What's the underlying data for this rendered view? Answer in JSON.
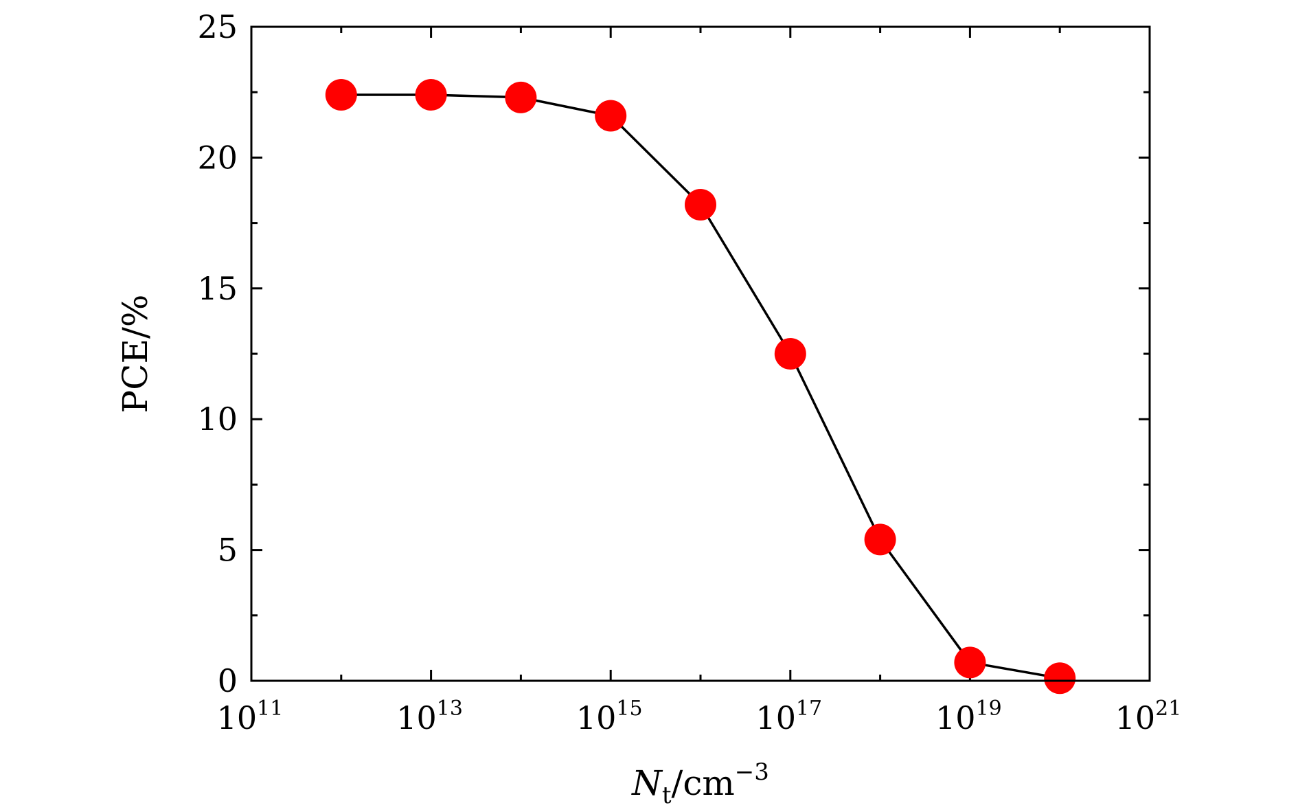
{
  "chart_data": {
    "type": "line",
    "x_scale": "log",
    "x": [
      "1e12",
      "1e13",
      "1e14",
      "1e15",
      "1e16",
      "1e17",
      "1e18",
      "1e19",
      "1e20"
    ],
    "series": [
      {
        "values": [
          22.4,
          22.4,
          22.3,
          21.6,
          18.2,
          12.5,
          5.4,
          0.7,
          0.1
        ],
        "line_color": "#000000",
        "marker_color": "#ff0000",
        "marker": "circle"
      }
    ],
    "xlim": [
      "1e11",
      "1e21"
    ],
    "ylim": [
      0,
      25
    ],
    "x_ticks": [
      {
        "base": "10",
        "exp": "11"
      },
      {
        "base": "10",
        "exp": "13"
      },
      {
        "base": "10",
        "exp": "15"
      },
      {
        "base": "10",
        "exp": "17"
      },
      {
        "base": "10",
        "exp": "19"
      },
      {
        "base": "10",
        "exp": "21"
      }
    ],
    "y_ticks": [
      "0",
      "5",
      "10",
      "15",
      "20",
      "25"
    ],
    "xlabel": {
      "main": "N",
      "sub": "t",
      "unit": "/cm",
      "exp": "−3"
    },
    "ylabel": "PCE/%",
    "grid": false,
    "legend": "none"
  }
}
